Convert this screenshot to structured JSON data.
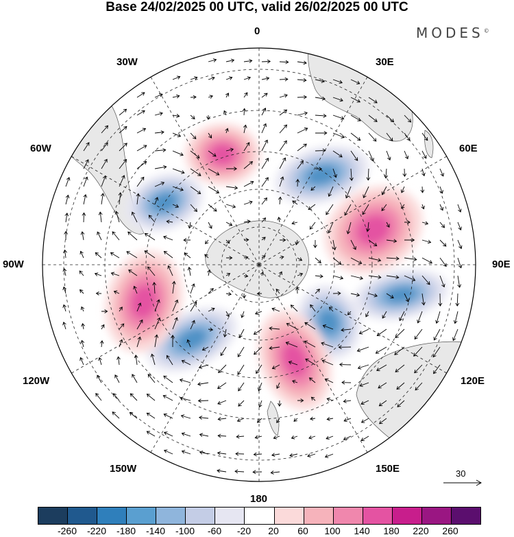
{
  "title": "Base 24/02/2025 00 UTC, valid 26/02/2025 00 UTC",
  "brand": "MODES",
  "brand_mark": "©",
  "longitude_labels": {
    "n0": "0",
    "n30e": "30E",
    "n60e": "60E",
    "e90": "90E",
    "n120e": "120E",
    "n150e": "150E",
    "s180": "180",
    "n150w": "150W",
    "n120w": "120W",
    "w90": "90W",
    "n60w": "60W",
    "n30w": "30W"
  },
  "reference_vector": "30",
  "colorbar": {
    "colors": [
      "#1c3d5e",
      "#20598e",
      "#2f7fbb",
      "#5a9fd0",
      "#8fb5dc",
      "#c4cde6",
      "#e6e6f2",
      "#ffffff",
      "#fbdada",
      "#f6b3bb",
      "#f087ad",
      "#e453a2",
      "#c81e8c",
      "#9a1682",
      "#5b0e6e"
    ],
    "ticks": [
      "-260",
      "-220",
      "-180",
      "-140",
      "-100",
      "-60",
      "-20",
      "20",
      "60",
      "100",
      "140",
      "180",
      "220",
      "260"
    ]
  },
  "map": {
    "projection": "south polar stereographic",
    "land_color": "#e8e8e8",
    "features": [
      {
        "name": "cyclone-30w",
        "sign": "negative",
        "peak": "-180"
      },
      {
        "name": "anticyclone-10w",
        "sign": "positive",
        "peak": "200"
      },
      {
        "name": "cyclone-30e",
        "sign": "negative",
        "peak": "-140"
      },
      {
        "name": "anticyclone-65e",
        "sign": "positive",
        "peak": "200"
      },
      {
        "name": "cyclone-100e",
        "sign": "negative",
        "peak": "-100"
      },
      {
        "name": "cyclone-130e",
        "sign": "negative",
        "peak": "-140"
      },
      {
        "name": "anticyclone-160e",
        "sign": "positive",
        "peak": "200"
      },
      {
        "name": "cyclone-140w",
        "sign": "negative",
        "peak": "-180"
      },
      {
        "name": "anticyclone-110w",
        "sign": "positive",
        "peak": "160"
      }
    ]
  }
}
